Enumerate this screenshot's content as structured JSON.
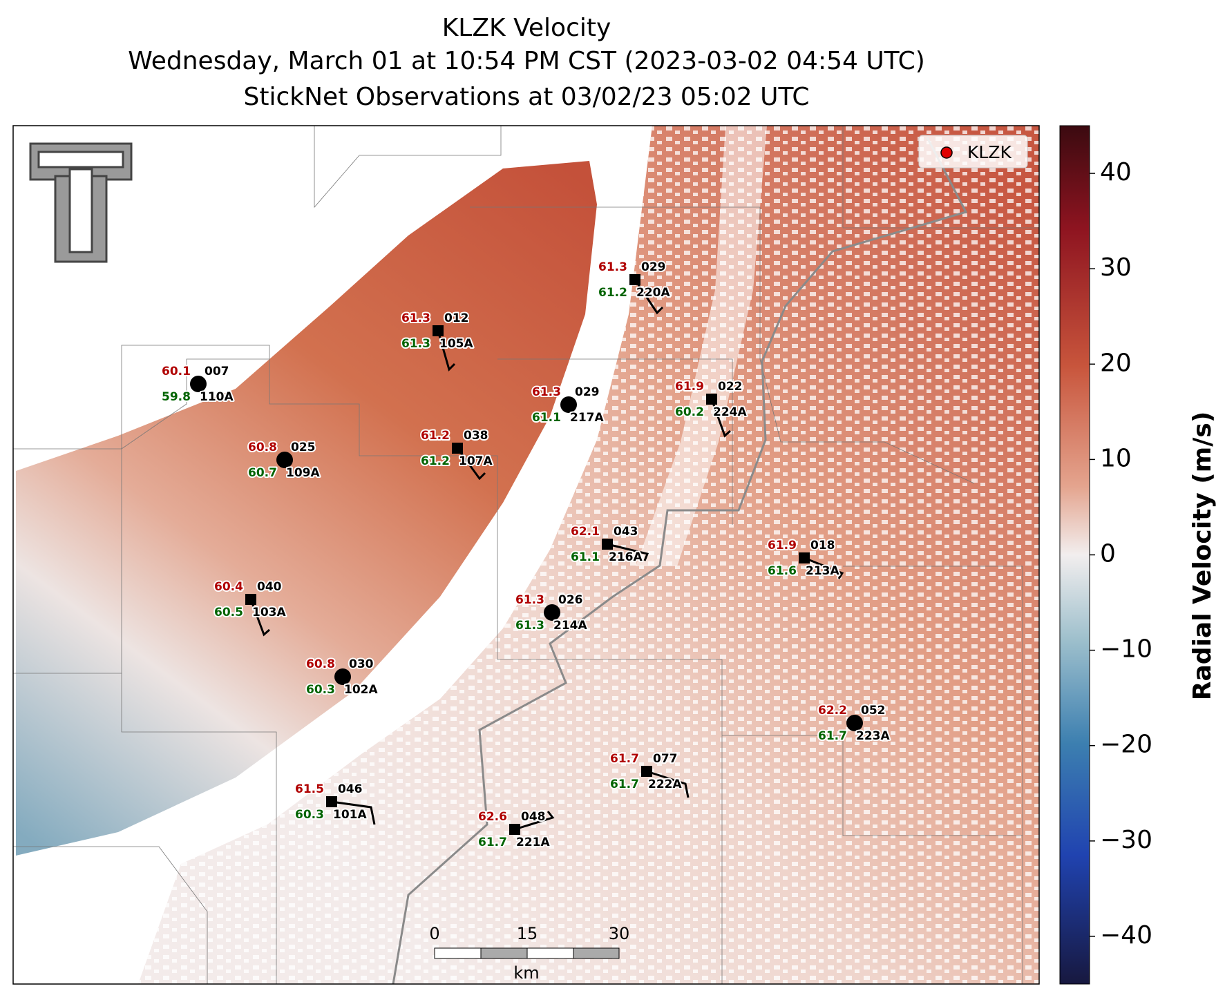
{
  "title_lines": [
    "KLZK Velocity",
    "Wednesday, March 01 at 10:54 PM CST (2023-03-02 04:54 UTC)",
    "StickNet Observations at 03/02/23 05:02 UTC"
  ],
  "legend": {
    "label": "KLZK",
    "color": "#e00000"
  },
  "colorbar": {
    "label": "Radial Velocity (m/s)",
    "range": [
      -45,
      45
    ],
    "ticks": [
      40,
      30,
      20,
      10,
      0,
      {
        "value": -10,
        "label": "−10"
      },
      {
        "value": -20,
        "label": "−20"
      },
      {
        "value": -30,
        "label": "−30"
      },
      {
        "value": -40,
        "label": "−40"
      }
    ]
  },
  "scale_bar": {
    "labels": [
      "0",
      "15",
      "30"
    ],
    "unit": "km"
  },
  "stations": [
    {
      "id": "110A",
      "temperature": "60.1",
      "dewpoint": "59.8",
      "code": "007",
      "marker": "circle"
    },
    {
      "id": "105A",
      "temperature": "61.3",
      "dewpoint": "61.3",
      "code": "012",
      "marker": "square"
    },
    {
      "id": "220A",
      "temperature": "61.3",
      "dewpoint": "61.2",
      "code": "029",
      "marker": "square"
    },
    {
      "id": "217A",
      "temperature": "61.3",
      "dewpoint": "61.1",
      "code": "029",
      "marker": "circle"
    },
    {
      "id": "224A",
      "temperature": "61.9",
      "dewpoint": "60.2",
      "code": "022",
      "marker": "square"
    },
    {
      "id": "109A",
      "temperature": "60.8",
      "dewpoint": "60.7",
      "code": "025",
      "marker": "circle"
    },
    {
      "id": "107A",
      "temperature": "61.2",
      "dewpoint": "61.2",
      "code": "038",
      "marker": "square"
    },
    {
      "id": "216A",
      "temperature": "62.1",
      "dewpoint": "61.1",
      "code": "043",
      "marker": "square"
    },
    {
      "id": "213A",
      "temperature": "61.9",
      "dewpoint": "61.6",
      "code": "018",
      "marker": "square"
    },
    {
      "id": "103A",
      "temperature": "60.4",
      "dewpoint": "60.5",
      "code": "040",
      "marker": "square"
    },
    {
      "id": "214A",
      "temperature": "61.3",
      "dewpoint": "61.3",
      "code": "026",
      "marker": "circle"
    },
    {
      "id": "102A",
      "temperature": "60.8",
      "dewpoint": "60.3",
      "code": "030",
      "marker": "circle"
    },
    {
      "id": "223A",
      "temperature": "62.2",
      "dewpoint": "61.7",
      "code": "052",
      "marker": "circle"
    },
    {
      "id": "222A",
      "temperature": "61.7",
      "dewpoint": "61.7",
      "code": "077",
      "marker": "square"
    },
    {
      "id": "101A",
      "temperature": "61.5",
      "dewpoint": "60.3",
      "code": "046",
      "marker": "square"
    },
    {
      "id": "221A",
      "temperature": "62.6",
      "dewpoint": "61.7",
      "code": "048",
      "marker": "square"
    }
  ]
}
